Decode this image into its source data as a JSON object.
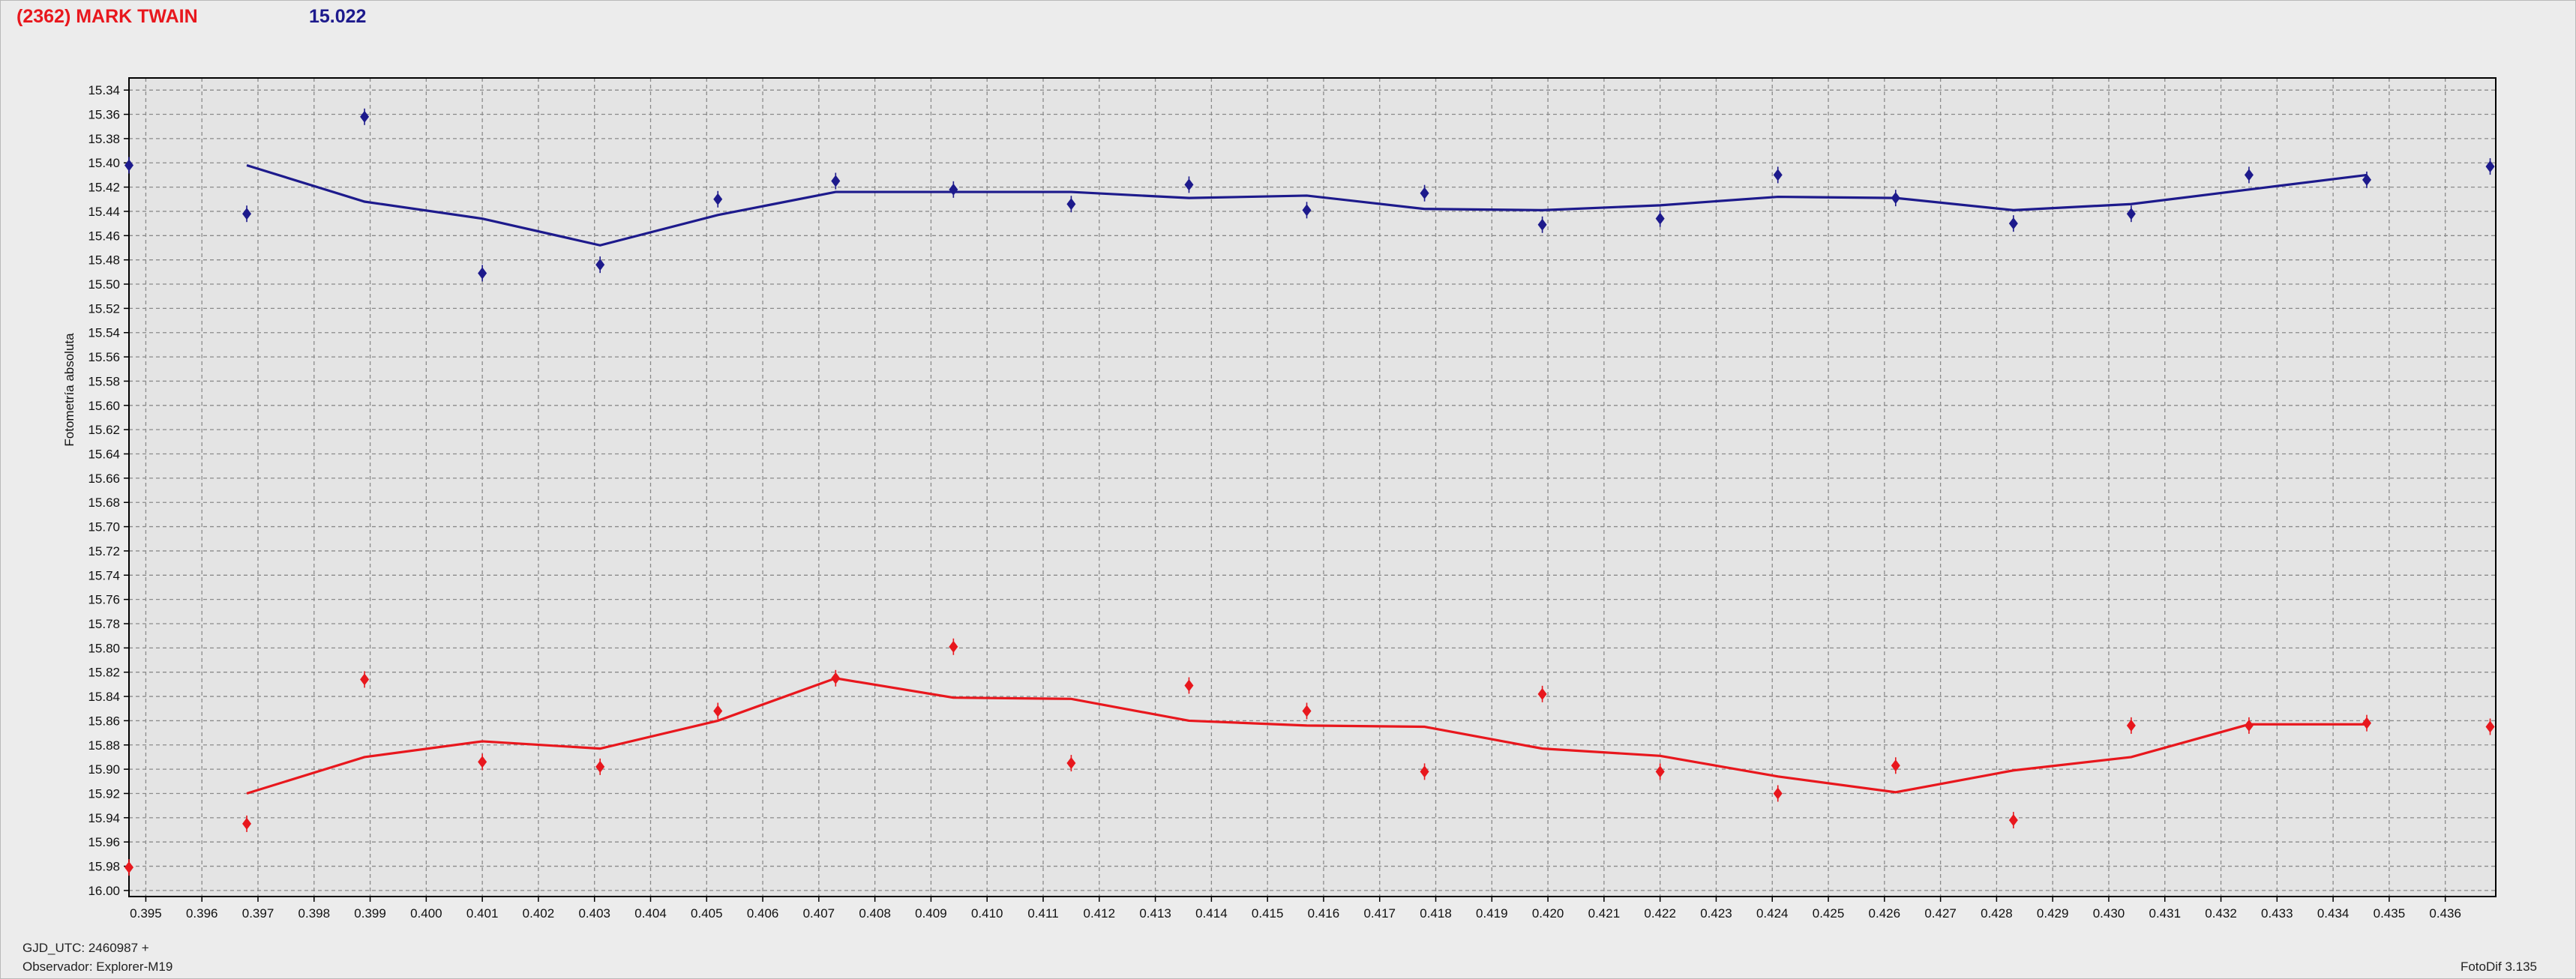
{
  "header": {
    "title": "(2362) MARK TWAIN",
    "value": "15.022"
  },
  "footer": {
    "gjd": "GJD_UTC: 2460987 +",
    "observer": "Observador: Explorer-M19",
    "version": "FotoDif 3.135"
  },
  "colors": {
    "plot_background": "#e4e4e4",
    "grid": "#8a8a8a",
    "series_blue": "#1d1a8c",
    "series_red": "#e8171d"
  },
  "chart_data": {
    "type": "line",
    "ylabel": "Fotometría absoluta",
    "xlabel": "",
    "xlim": [
      0.3947,
      0.4369
    ],
    "ylim": [
      15.33,
      16.005
    ],
    "y_inverted": true,
    "grid": true,
    "x_ticks": [
      "0.395",
      "0.396",
      "0.397",
      "0.398",
      "0.399",
      "0.400",
      "0.401",
      "0.402",
      "0.403",
      "0.404",
      "0.405",
      "0.406",
      "0.407",
      "0.408",
      "0.409",
      "0.410",
      "0.411",
      "0.412",
      "0.413",
      "0.414",
      "0.415",
      "0.416",
      "0.417",
      "0.418",
      "0.419",
      "0.420",
      "0.421",
      "0.422",
      "0.423",
      "0.424",
      "0.425",
      "0.426",
      "0.427",
      "0.428",
      "0.429",
      "0.430",
      "0.431",
      "0.432",
      "0.433",
      "0.434",
      "0.435",
      "0.436"
    ],
    "y_ticks": [
      "15.34",
      "15.36",
      "15.38",
      "15.40",
      "15.42",
      "15.44",
      "15.46",
      "15.48",
      "15.50",
      "15.52",
      "15.54",
      "15.56",
      "15.58",
      "15.60",
      "15.62",
      "15.64",
      "15.66",
      "15.68",
      "15.70",
      "15.72",
      "15.74",
      "15.76",
      "15.78",
      "15.80",
      "15.82",
      "15.84",
      "15.86",
      "15.88",
      "15.90",
      "15.92",
      "15.94",
      "15.96",
      "15.98",
      "16.00"
    ],
    "series": [
      {
        "color": "#1d1a8c",
        "points_x": [
          0.3947,
          0.3968,
          0.3989,
          0.401,
          0.4031,
          0.4052,
          0.4073,
          0.4094,
          0.4115,
          0.4136,
          0.4157,
          0.4178,
          0.4199,
          0.422,
          0.4241,
          0.4262,
          0.4283,
          0.4304,
          0.4325,
          0.4346,
          0.4368
        ],
        "points_y": [
          15.402,
          15.442,
          15.362,
          15.491,
          15.484,
          15.43,
          15.415,
          15.422,
          15.434,
          15.418,
          15.439,
          15.425,
          15.451,
          15.446,
          15.41,
          15.429,
          15.45,
          15.442,
          15.41,
          15.414,
          15.403
        ],
        "line_x": [
          0.3968,
          0.3989,
          0.401,
          0.4031,
          0.4052,
          0.4073,
          0.4094,
          0.4115,
          0.4136,
          0.4157,
          0.4178,
          0.4199,
          0.422,
          0.4241,
          0.4262,
          0.4283,
          0.4304,
          0.4325,
          0.4346
        ],
        "line_y": [
          15.402,
          15.432,
          15.446,
          15.468,
          15.443,
          15.424,
          15.424,
          15.424,
          15.429,
          15.427,
          15.438,
          15.439,
          15.435,
          15.428,
          15.429,
          15.439,
          15.434,
          15.422,
          15.41
        ]
      },
      {
        "color": "#e8171d",
        "points_x": [
          0.3947,
          0.3968,
          0.3989,
          0.401,
          0.4031,
          0.4052,
          0.4073,
          0.4094,
          0.4115,
          0.4136,
          0.4157,
          0.4178,
          0.4199,
          0.422,
          0.4241,
          0.4262,
          0.4283,
          0.4304,
          0.4325,
          0.4346,
          0.4368
        ],
        "points_y": [
          15.981,
          15.945,
          15.826,
          15.894,
          15.898,
          15.852,
          15.825,
          15.799,
          15.895,
          15.831,
          15.852,
          15.902,
          15.838,
          15.902,
          15.92,
          15.897,
          15.942,
          15.864,
          15.864,
          15.862,
          15.865
        ],
        "line_x": [
          0.3968,
          0.3989,
          0.401,
          0.4031,
          0.4052,
          0.4073,
          0.4094,
          0.4115,
          0.4136,
          0.4157,
          0.4178,
          0.4199,
          0.422,
          0.4241,
          0.4262,
          0.4283,
          0.4304,
          0.4325,
          0.4346
        ],
        "line_y": [
          15.92,
          15.89,
          15.877,
          15.883,
          15.86,
          15.825,
          15.841,
          15.842,
          15.86,
          15.864,
          15.865,
          15.883,
          15.889,
          15.906,
          15.919,
          15.901,
          15.89,
          15.863,
          15.863
        ]
      }
    ]
  }
}
